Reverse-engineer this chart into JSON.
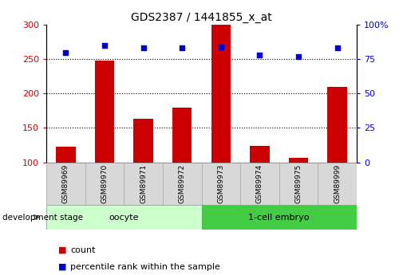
{
  "title": "GDS2387 / 1441855_x_at",
  "samples": [
    "GSM89969",
    "GSM89970",
    "GSM89971",
    "GSM89972",
    "GSM89973",
    "GSM89974",
    "GSM89975",
    "GSM89999"
  ],
  "counts": [
    123,
    248,
    163,
    180,
    300,
    124,
    106,
    210
  ],
  "percentiles": [
    80,
    85,
    83,
    83,
    84,
    78,
    77,
    83
  ],
  "ylim_left": [
    100,
    300
  ],
  "ylim_right": [
    0,
    100
  ],
  "yticks_left": [
    100,
    150,
    200,
    250,
    300
  ],
  "yticks_right": [
    0,
    25,
    50,
    75,
    100
  ],
  "bar_color": "#cc0000",
  "dot_color": "#0000cc",
  "groups": [
    {
      "label": "oocyte",
      "indices": [
        0,
        1,
        2,
        3
      ],
      "color": "#ccffcc"
    },
    {
      "label": "1-cell embryo",
      "indices": [
        4,
        5,
        6,
        7
      ],
      "color": "#44cc44"
    }
  ],
  "grid_yticks": [
    150,
    200,
    250
  ],
  "background_color": "#ffffff",
  "label_color_left": "#cc0000",
  "label_color_right": "#0000cc",
  "dev_stage_label": "development stage",
  "legend_count_label": "count",
  "legend_pct_label": "percentile rank within the sample",
  "tick_box_color": "#d8d8d8",
  "tick_box_edge_color": "#aaaaaa",
  "right_tick_labels": [
    "0",
    "25",
    "50",
    "75",
    "100%"
  ]
}
